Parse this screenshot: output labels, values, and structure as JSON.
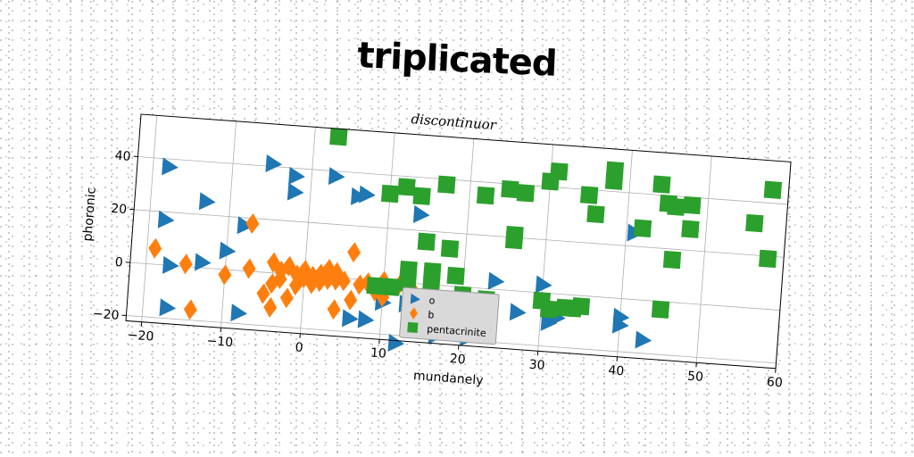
{
  "title": "triplicated",
  "chart_data": {
    "type": "scatter",
    "subtitle": "discontinuor",
    "xlabel": "mundanely",
    "ylabel": "phoronic",
    "xlim": [
      -22,
      60
    ],
    "ylim": [
      -22,
      56
    ],
    "xticks": [
      -20,
      -10,
      0,
      10,
      20,
      30,
      40,
      50,
      60
    ],
    "yticks": [
      -20,
      0,
      20,
      40
    ],
    "grid": true,
    "legend_position": "lower center",
    "series": [
      {
        "name": "o",
        "marker": "triangle-right",
        "color": "#1f77b4",
        "points": [
          [
            -18,
            37
          ],
          [
            -18,
            17
          ],
          [
            -13,
            25
          ],
          [
            -10,
            7
          ],
          [
            -8,
            17
          ],
          [
            -5,
            41
          ],
          [
            -2,
            37
          ],
          [
            -2,
            31
          ],
          [
            3,
            38
          ],
          [
            6,
            31
          ],
          [
            7,
            32
          ],
          [
            14,
            26
          ],
          [
            -17,
            0
          ],
          [
            -13,
            2
          ],
          [
            -17,
            -16
          ],
          [
            -8,
            -16
          ],
          [
            6,
            -15
          ],
          [
            8,
            -15
          ],
          [
            10,
            -8
          ],
          [
            13,
            -8
          ],
          [
            15,
            -11
          ],
          [
            17,
            -19
          ],
          [
            21,
            -19
          ],
          [
            24,
            3
          ],
          [
            27,
            -8
          ],
          [
            30,
            3
          ],
          [
            31,
            -11
          ],
          [
            32,
            -9
          ],
          [
            40,
            -7
          ],
          [
            40,
            -10
          ],
          [
            41,
            25
          ],
          [
            43,
            -15
          ],
          [
            12,
            -23
          ]
        ]
      },
      {
        "name": "b",
        "marker": "diamond",
        "color": "#ff7f0e",
        "points": [
          [
            -19,
            6
          ],
          [
            -15,
            1
          ],
          [
            -14,
            -16
          ],
          [
            -10,
            -2
          ],
          [
            -7,
            18
          ],
          [
            -7,
            1
          ],
          [
            -5,
            -8
          ],
          [
            -4,
            -4
          ],
          [
            -4,
            4
          ],
          [
            -4,
            -13
          ],
          [
            -3,
            -2
          ],
          [
            -3,
            1
          ],
          [
            -2,
            -9
          ],
          [
            -2,
            3
          ],
          [
            -1,
            -4
          ],
          [
            -1,
            0
          ],
          [
            0,
            -1
          ],
          [
            0,
            2
          ],
          [
            1,
            -3
          ],
          [
            1,
            0
          ],
          [
            2,
            1
          ],
          [
            2,
            -2
          ],
          [
            3,
            -1
          ],
          [
            3,
            3
          ],
          [
            4,
            -1
          ],
          [
            4,
            2
          ],
          [
            4,
            -12
          ],
          [
            5,
            -1
          ],
          [
            6,
            -8
          ],
          [
            6,
            10
          ],
          [
            7,
            -2
          ],
          [
            8,
            -1
          ],
          [
            9,
            -4
          ],
          [
            10,
            -6
          ],
          [
            10,
            0
          ],
          [
            12,
            -1
          ],
          [
            14,
            -4
          ],
          [
            16,
            -5
          ]
        ]
      },
      {
        "name": "pentacrinite",
        "marker": "square",
        "color": "#2ca02c",
        "points": [
          [
            3,
            53
          ],
          [
            10,
            33
          ],
          [
            12,
            36
          ],
          [
            14,
            33
          ],
          [
            17,
            38
          ],
          [
            22,
            35
          ],
          [
            25,
            38
          ],
          [
            27,
            37
          ],
          [
            30,
            42
          ],
          [
            31,
            46
          ],
          [
            35,
            38
          ],
          [
            36,
            31
          ],
          [
            38,
            44
          ],
          [
            38,
            48
          ],
          [
            42,
            27
          ],
          [
            44,
            44
          ],
          [
            45,
            37
          ],
          [
            46,
            36
          ],
          [
            46,
            16
          ],
          [
            48,
            28
          ],
          [
            48,
            37
          ],
          [
            56,
            32
          ],
          [
            58,
            45
          ],
          [
            58,
            19
          ],
          [
            26,
            21
          ],
          [
            26,
            19
          ],
          [
            15,
            16
          ],
          [
            18,
            14
          ],
          [
            13,
            5
          ],
          [
            16,
            5
          ],
          [
            19,
            4
          ],
          [
            9,
            -2
          ],
          [
            11,
            -2
          ],
          [
            13,
            0
          ],
          [
            16,
            0
          ],
          [
            20,
            -3
          ],
          [
            23,
            -4
          ],
          [
            30,
            -3
          ],
          [
            31,
            -6
          ],
          [
            33,
            -5
          ],
          [
            34,
            -5
          ],
          [
            35,
            -4
          ],
          [
            45,
            -3
          ]
        ]
      }
    ]
  }
}
